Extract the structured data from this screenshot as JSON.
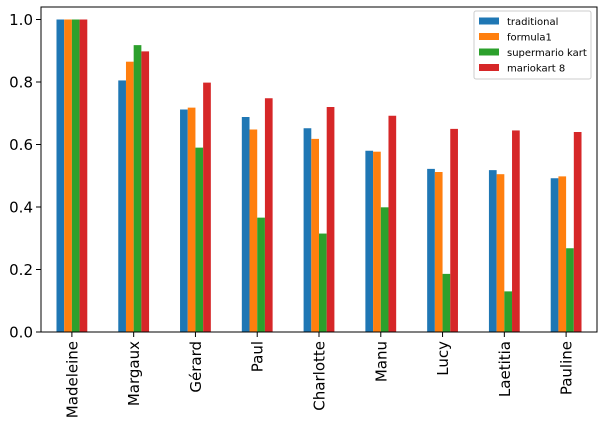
{
  "chart_data": {
    "type": "bar",
    "categories": [
      "Madeleine",
      "Margaux",
      "Gérard",
      "Paul",
      "Charlotte",
      "Manu",
      "Lucy",
      "Laetitia",
      "Pauline"
    ],
    "series": [
      {
        "name": "traditional",
        "color": "#1f77b4",
        "values": [
          1.0,
          0.805,
          0.712,
          0.688,
          0.652,
          0.58,
          0.522,
          0.518,
          0.492
        ]
      },
      {
        "name": "formula1",
        "color": "#ff7f0e",
        "values": [
          1.0,
          0.865,
          0.718,
          0.648,
          0.618,
          0.577,
          0.512,
          0.505,
          0.498
        ]
      },
      {
        "name": "supermario kart",
        "color": "#2ca02c",
        "values": [
          1.0,
          0.918,
          0.59,
          0.366,
          0.315,
          0.399,
          0.186,
          0.13,
          0.268
        ]
      },
      {
        "name": "mariokart 8",
        "color": "#d62728",
        "values": [
          1.0,
          0.898,
          0.798,
          0.748,
          0.72,
          0.692,
          0.65,
          0.645,
          0.64
        ]
      }
    ],
    "ylim": [
      0,
      1.04
    ],
    "yticks": [
      "0.0",
      "0.2",
      "0.4",
      "0.6",
      "0.8",
      "1.0"
    ],
    "legend_position": "top-right",
    "grid": false
  }
}
